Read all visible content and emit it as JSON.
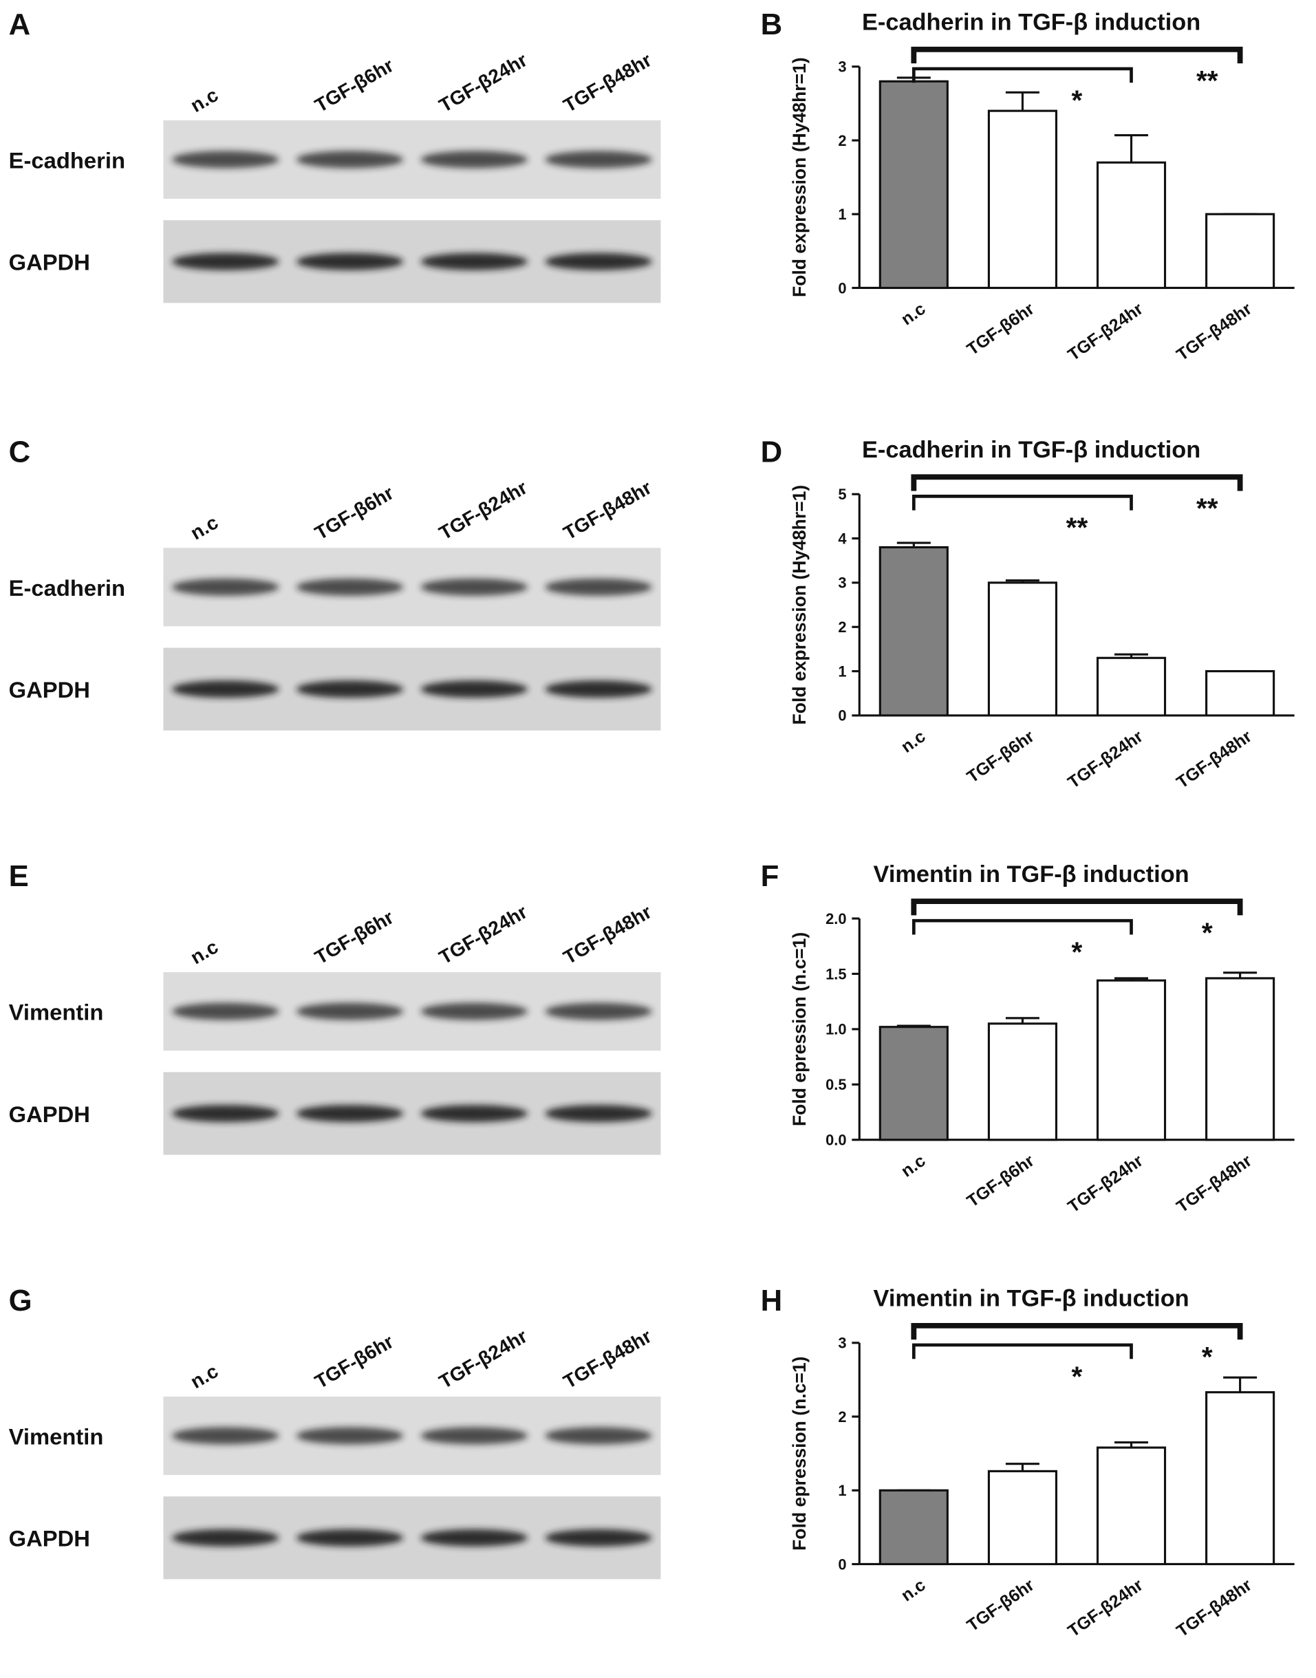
{
  "blots": [
    {
      "letter": "A",
      "lanes": [
        "n.c",
        "TGF-β6hr",
        "TGF-β24hr",
        "TGF-β48hr"
      ],
      "rows": [
        "E-cadherin",
        "GAPDH"
      ]
    },
    {
      "letter": "C",
      "lanes": [
        "n.c",
        "TGF-β6hr",
        "TGF-β24hr",
        "TGF-β48hr"
      ],
      "rows": [
        "E-cadherin",
        "GAPDH"
      ]
    },
    {
      "letter": "E",
      "lanes": [
        "n.c",
        "TGF-β6hr",
        "TGF-β24hr",
        "TGF-β48hr"
      ],
      "rows": [
        "Vimentin",
        "GAPDH"
      ]
    },
    {
      "letter": "G",
      "lanes": [
        "n.c",
        "TGF-β6hr",
        "TGF-β24hr",
        "TGF-β48hr"
      ],
      "rows": [
        "Vimentin",
        "GAPDH"
      ]
    }
  ],
  "chart_data": [
    {
      "type": "bar",
      "letter": "B",
      "title": "E-cadherin in TGF-β induction",
      "y_label": "Fold expression (Hy48hr=1)",
      "categories": [
        "n.c",
        "TGF-β6hr",
        "TGF-β24hr",
        "TGF-β48hr"
      ],
      "values": [
        2.8,
        2.4,
        1.7,
        1.0
      ],
      "errors": [
        0.05,
        0.25,
        0.37,
        0
      ],
      "colors": [
        "#808080",
        "#ffffff",
        "#ffffff",
        "#ffffff"
      ],
      "ylim": [
        0,
        3
      ],
      "yticks": [
        0,
        1,
        2,
        3
      ],
      "brackets": [
        {
          "from": 0,
          "to": 2,
          "label": "*"
        },
        {
          "from": 0,
          "to": 3,
          "label": "**"
        }
      ]
    },
    {
      "type": "bar",
      "letter": "D",
      "title": "E-cadherin in TGF-β induction",
      "y_label": "Fold expression (Hy48hr=1)",
      "categories": [
        "n.c",
        "TGF-β6hr",
        "TGF-β24hr",
        "TGF-β48hr"
      ],
      "values": [
        3.8,
        3.0,
        1.3,
        1.0
      ],
      "errors": [
        0.1,
        0.05,
        0.08,
        0
      ],
      "colors": [
        "#808080",
        "#ffffff",
        "#ffffff",
        "#ffffff"
      ],
      "ylim": [
        0,
        5
      ],
      "yticks": [
        0,
        1,
        2,
        3,
        4,
        5
      ],
      "brackets": [
        {
          "from": 0,
          "to": 2,
          "label": "**"
        },
        {
          "from": 0,
          "to": 3,
          "label": "**"
        }
      ]
    },
    {
      "type": "bar",
      "letter": "F",
      "title": "Vimentin in TGF-β induction",
      "y_label": "Fold epression (n.c=1)",
      "categories": [
        "n.c",
        "TGF-β6hr",
        "TGF-β24hr",
        "TGF-β48hr"
      ],
      "values": [
        1.02,
        1.05,
        1.44,
        1.46
      ],
      "errors": [
        0.01,
        0.05,
        0.02,
        0.05
      ],
      "colors": [
        "#808080",
        "#ffffff",
        "#ffffff",
        "#ffffff"
      ],
      "ylim": [
        0,
        2
      ],
      "yticks": [
        {
          "value": 0,
          "label": "0.0"
        },
        0.5,
        {
          "value": 1,
          "label": "1.0"
        },
        1.5,
        {
          "value": 2,
          "label": "2.0"
        }
      ],
      "brackets": [
        {
          "from": 0,
          "to": 2,
          "label": "*"
        },
        {
          "from": 0,
          "to": 3,
          "label": "*"
        }
      ]
    },
    {
      "type": "bar",
      "letter": "H",
      "title": "Vimentin in TGF-β induction",
      "y_label": "Fold epression (n.c=1)",
      "categories": [
        "n.c",
        "TGF-β6hr",
        "TGF-β24hr",
        "TGF-β48hr"
      ],
      "values": [
        1.0,
        1.26,
        1.58,
        2.33
      ],
      "errors": [
        0,
        0.1,
        0.07,
        0.2
      ],
      "colors": [
        "#808080",
        "#ffffff",
        "#ffffff",
        "#ffffff"
      ],
      "ylim": [
        0,
        3
      ],
      "yticks": [
        0,
        1,
        2,
        3
      ],
      "brackets": [
        {
          "from": 0,
          "to": 2,
          "label": "*"
        },
        {
          "from": 0,
          "to": 3,
          "label": "*"
        }
      ]
    }
  ]
}
